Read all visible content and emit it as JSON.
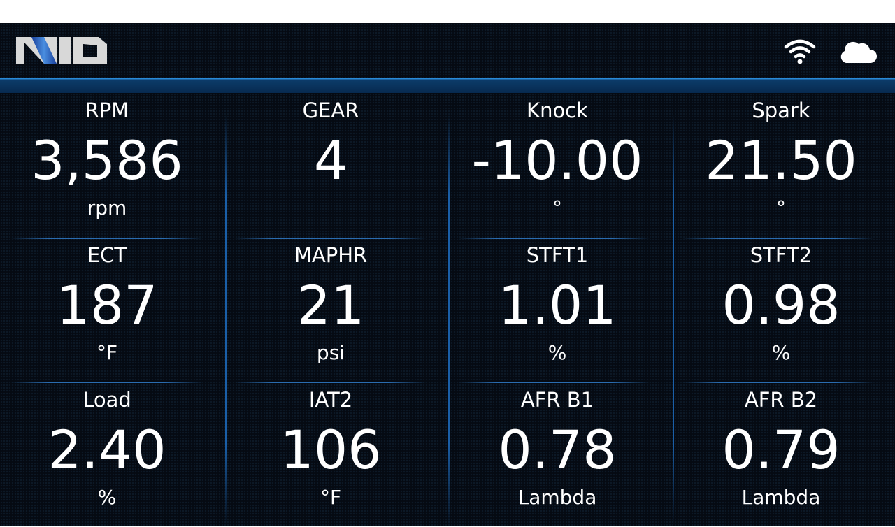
{
  "header": {
    "logo": "AVID",
    "icons": [
      "wifi-icon",
      "cloud-icon"
    ]
  },
  "colors": {
    "accent": "#2a8ad8",
    "background": "#050a12"
  },
  "gauges": [
    {
      "label": "RPM",
      "value": "3,586",
      "unit": "rpm"
    },
    {
      "label": "GEAR",
      "value": "4",
      "unit": ""
    },
    {
      "label": "Knock",
      "value": "-10.00",
      "unit": "°"
    },
    {
      "label": "Spark",
      "value": "21.50",
      "unit": "°"
    },
    {
      "label": "ECT",
      "value": "187",
      "unit": "°F"
    },
    {
      "label": "MAPHR",
      "value": "21",
      "unit": "psi"
    },
    {
      "label": "STFT1",
      "value": "1.01",
      "unit": "%"
    },
    {
      "label": "STFT2",
      "value": "0.98",
      "unit": "%"
    },
    {
      "label": "Load",
      "value": "2.40",
      "unit": "%"
    },
    {
      "label": "IAT2",
      "value": "106",
      "unit": "°F"
    },
    {
      "label": "AFR B1",
      "value": "0.78",
      "unit": "Lambda"
    },
    {
      "label": "AFR B2",
      "value": "0.79",
      "unit": "Lambda"
    }
  ]
}
